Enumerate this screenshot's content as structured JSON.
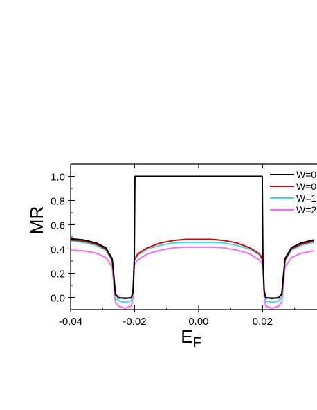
{
  "chart_data": {
    "type": "line",
    "title": "",
    "xlabel_main": "E",
    "xlabel_sub": "F",
    "ylabel": "MR",
    "xlim": [
      -0.04,
      0.037
    ],
    "ylim": [
      -0.1,
      1.1
    ],
    "xticks": [
      -0.04,
      -0.02,
      0.0,
      0.02
    ],
    "xtick_labels": [
      "-0.04",
      "-0.02",
      "0.00",
      "0.02"
    ],
    "yticks": [
      0.0,
      0.2,
      0.4,
      0.6,
      0.8,
      1.0
    ],
    "ytick_labels": [
      "0.0",
      "0.2",
      "0.4",
      "0.6",
      "0.8",
      "1.0"
    ],
    "grid": false,
    "legend_position": "top-right",
    "series": [
      {
        "name": "W=0",
        "color": "#000000",
        "x": [
          -0.04,
          -0.036,
          -0.032,
          -0.029,
          -0.027,
          -0.0265,
          -0.026,
          -0.025,
          -0.023,
          -0.021,
          -0.0205,
          -0.0201,
          -0.0199,
          0.0,
          0.0199,
          0.0201,
          0.0205,
          0.021,
          0.023,
          0.025,
          0.026,
          0.0265,
          0.027,
          0.029,
          0.032,
          0.036
        ],
        "y": [
          0.485,
          0.475,
          0.45,
          0.41,
          0.32,
          0.18,
          0.03,
          -0.005,
          -0.005,
          -0.005,
          0.05,
          0.3,
          1.0,
          1.0,
          1.0,
          0.3,
          0.05,
          -0.005,
          -0.005,
          -0.005,
          0.03,
          0.18,
          0.32,
          0.41,
          0.45,
          0.475
        ]
      },
      {
        "name": "W=0",
        "color": "#dd0000",
        "x": [
          -0.04,
          -0.036,
          -0.032,
          -0.029,
          -0.027,
          -0.0265,
          -0.026,
          -0.025,
          -0.023,
          -0.021,
          -0.0205,
          -0.0201,
          -0.019,
          -0.016,
          -0.012,
          -0.008,
          -0.004,
          0.0,
          0.004,
          0.008,
          0.012,
          0.016,
          0.019,
          0.0201,
          0.0205,
          0.021,
          0.023,
          0.025,
          0.026,
          0.0265,
          0.027,
          0.029,
          0.032,
          0.036
        ],
        "y": [
          0.475,
          0.465,
          0.44,
          0.4,
          0.31,
          0.17,
          0.02,
          0.0,
          -0.01,
          0.0,
          0.06,
          0.31,
          0.36,
          0.41,
          0.45,
          0.47,
          0.48,
          0.48,
          0.48,
          0.47,
          0.45,
          0.41,
          0.36,
          0.31,
          0.06,
          0.0,
          -0.01,
          0.0,
          0.02,
          0.17,
          0.31,
          0.4,
          0.44,
          0.465
        ]
      },
      {
        "name": "W=1",
        "color": "#33e0e8",
        "x": [
          -0.04,
          -0.036,
          -0.032,
          -0.029,
          -0.027,
          -0.0265,
          -0.026,
          -0.025,
          -0.023,
          -0.021,
          -0.0205,
          -0.0201,
          -0.019,
          -0.016,
          -0.012,
          -0.008,
          -0.004,
          0.0,
          0.004,
          0.008,
          0.012,
          0.016,
          0.019,
          0.0201,
          0.0205,
          0.021,
          0.023,
          0.025,
          0.026,
          0.0265,
          0.027,
          0.029,
          0.032,
          0.036
        ],
        "y": [
          0.465,
          0.455,
          0.43,
          0.39,
          0.3,
          0.15,
          0.0,
          -0.03,
          -0.04,
          -0.03,
          0.04,
          0.3,
          0.35,
          0.4,
          0.43,
          0.45,
          0.455,
          0.455,
          0.455,
          0.45,
          0.43,
          0.4,
          0.35,
          0.3,
          0.04,
          -0.03,
          -0.04,
          -0.03,
          0.0,
          0.15,
          0.3,
          0.39,
          0.43,
          0.455
        ]
      },
      {
        "name": "W=2",
        "color": "#ff66ff",
        "x": [
          -0.04,
          -0.036,
          -0.032,
          -0.029,
          -0.027,
          -0.0265,
          -0.026,
          -0.025,
          -0.023,
          -0.021,
          -0.0205,
          -0.0201,
          -0.019,
          -0.016,
          -0.012,
          -0.008,
          -0.004,
          0.0,
          0.004,
          0.008,
          0.012,
          0.016,
          0.019,
          0.0201,
          0.0205,
          0.021,
          0.023,
          0.025,
          0.026,
          0.0265,
          0.027,
          0.029,
          0.032,
          0.036
        ],
        "y": [
          0.39,
          0.385,
          0.365,
          0.33,
          0.25,
          0.1,
          -0.04,
          -0.07,
          -0.09,
          -0.07,
          0.0,
          0.27,
          0.31,
          0.36,
          0.39,
          0.41,
          0.415,
          0.415,
          0.415,
          0.41,
          0.39,
          0.36,
          0.31,
          0.27,
          0.0,
          -0.07,
          -0.09,
          -0.07,
          -0.04,
          0.1,
          0.25,
          0.33,
          0.365,
          0.385
        ]
      }
    ]
  }
}
